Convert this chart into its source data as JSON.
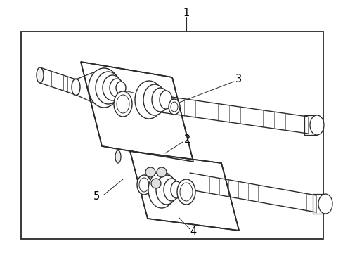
{
  "background_color": "#ffffff",
  "line_color": "#2a2a2a",
  "fig_width": 4.89,
  "fig_height": 3.6,
  "dpi": 100,
  "label_fontsize": 10.5
}
